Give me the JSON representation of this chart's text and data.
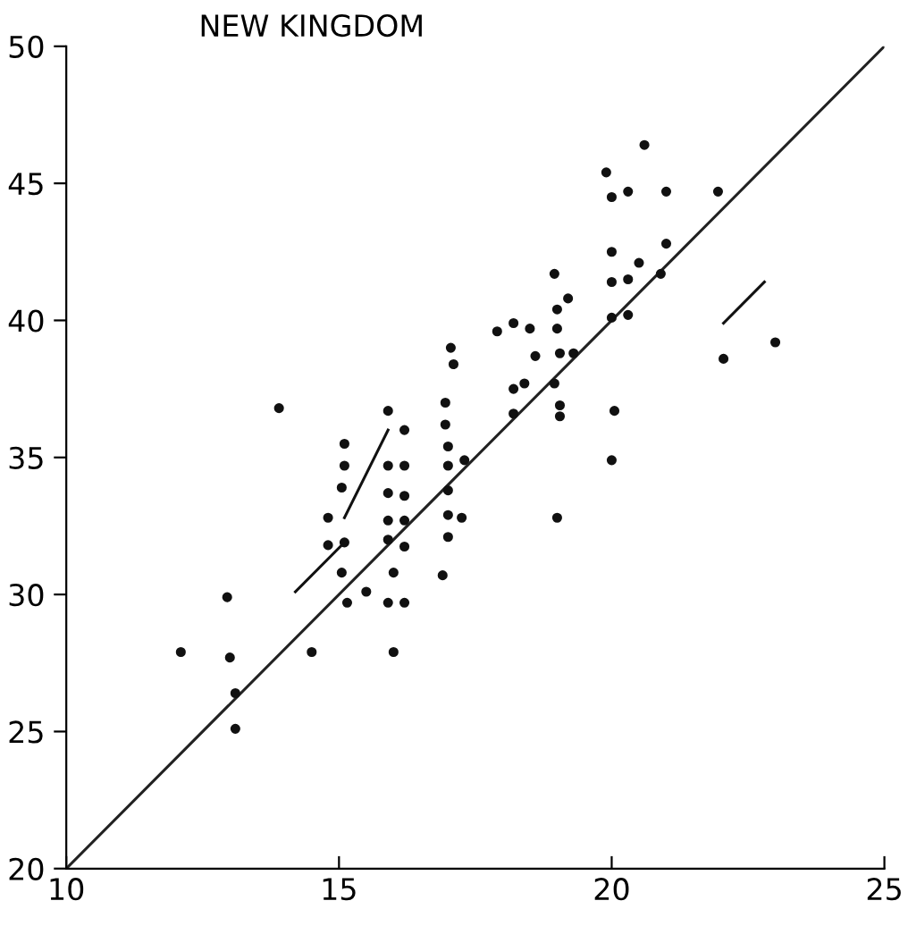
{
  "chart_data": {
    "type": "scatter",
    "title": "NEW KINGDOM",
    "xlim": [
      10,
      25
    ],
    "xticks": [
      10,
      15,
      20,
      25
    ],
    "ylim": [
      20,
      50
    ],
    "yticks": [
      20,
      25,
      30,
      35,
      40,
      45,
      50
    ],
    "grid": false,
    "legend": false,
    "series": [
      {
        "marker": "circle",
        "color": "#111111",
        "x": [
          13.9,
          15.9,
          16.2,
          16.95,
          17.1,
          16.95,
          15.1,
          15.1,
          15.9,
          16.2,
          17.0,
          17.0,
          17.3,
          15.05,
          15.9,
          16.2,
          17.0,
          14.8,
          15.9,
          16.2,
          17.0,
          17.25,
          14.8,
          15.1,
          15.9,
          16.2,
          17.0,
          15.05,
          16.0,
          16.9,
          12.95,
          15.15,
          15.5,
          15.9,
          16.2,
          12.1,
          13.0,
          14.5,
          16.0,
          13.1,
          13.1,
          17.05,
          17.9,
          18.2,
          18.5,
          18.95,
          19.2,
          19.0,
          19.0,
          18.6,
          19.05,
          19.3,
          18.2,
          18.4,
          18.95,
          18.2,
          19.05,
          19.05,
          19.0,
          20.0,
          20.3,
          20.0,
          20.3,
          20.05,
          20.0,
          20.9,
          20.6,
          19.9,
          20.0,
          20.3,
          21.0,
          21.95,
          20.0,
          21.0,
          20.5,
          22.05,
          23.0
        ],
        "values": [
          36.8,
          36.7,
          36.0,
          37.0,
          38.4,
          36.2,
          35.5,
          34.7,
          34.7,
          34.7,
          35.4,
          34.7,
          34.9,
          33.9,
          33.7,
          33.6,
          33.8,
          32.8,
          32.7,
          32.7,
          32.9,
          32.8,
          31.8,
          31.9,
          32.0,
          31.75,
          32.1,
          30.8,
          30.8,
          30.7,
          29.9,
          29.7,
          30.1,
          29.7,
          29.7,
          27.9,
          27.7,
          27.9,
          27.9,
          26.4,
          25.1,
          39.0,
          39.6,
          39.9,
          39.7,
          41.7,
          40.8,
          40.4,
          39.7,
          38.7,
          38.8,
          38.8,
          37.5,
          37.7,
          37.7,
          36.6,
          36.9,
          36.5,
          32.8,
          41.4,
          41.5,
          40.1,
          40.2,
          36.7,
          34.9,
          41.7,
          46.4,
          45.4,
          44.5,
          44.7,
          44.7,
          44.7,
          42.5,
          42.8,
          42.1,
          38.6,
          39.2
        ]
      },
      {
        "type": "line",
        "marker": "none",
        "color": "#222222",
        "x": [
          10,
          25
        ],
        "values": [
          20,
          50
        ]
      },
      {
        "type": "line",
        "marker": "none",
        "color": "#111111",
        "x": [
          14.2,
          15.1
        ],
        "values": [
          30.1,
          31.9
        ]
      },
      {
        "type": "line",
        "marker": "none",
        "color": "#111111",
        "x": [
          15.1,
          15.9
        ],
        "values": [
          32.8,
          36.0
        ]
      },
      {
        "type": "line",
        "marker": "none",
        "color": "#111111",
        "x": [
          22.05,
          22.8
        ],
        "values": [
          39.9,
          41.4
        ]
      }
    ]
  }
}
